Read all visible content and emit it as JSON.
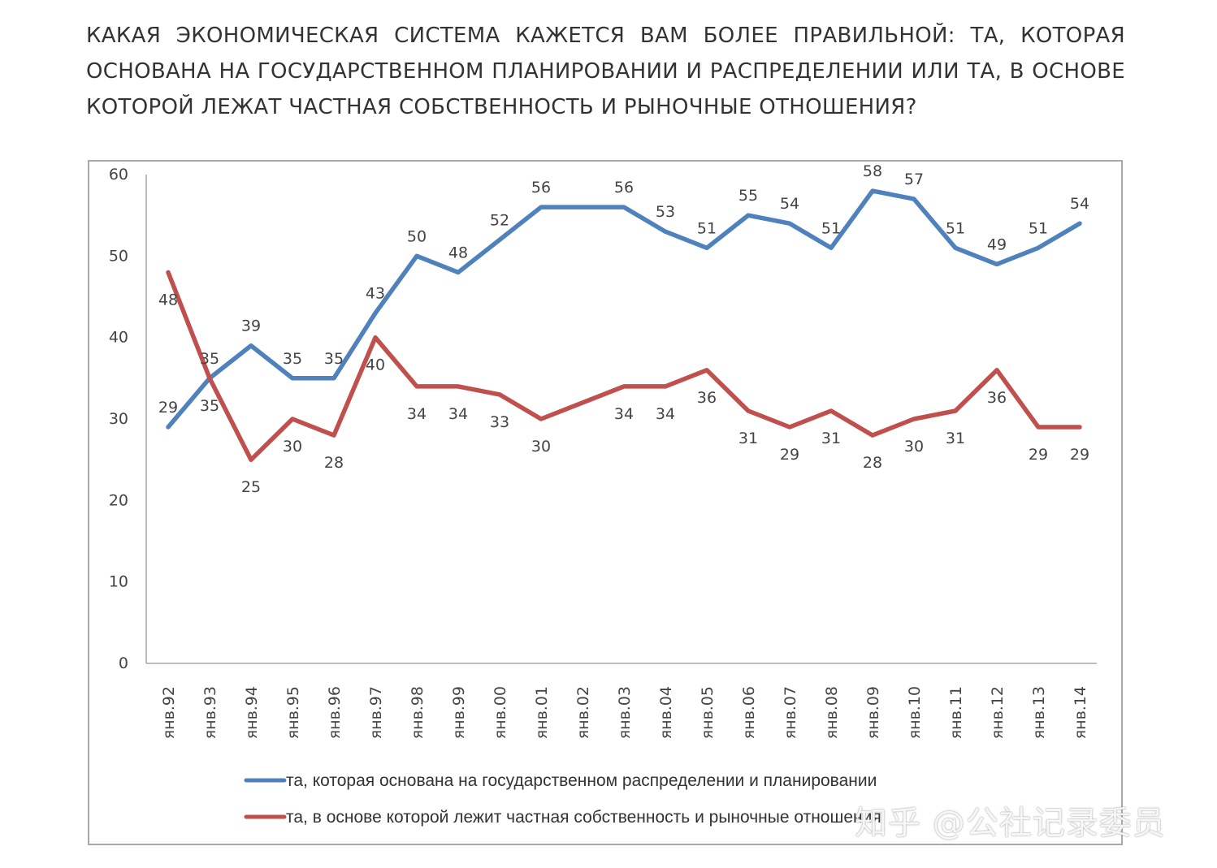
{
  "question": "КАКАЯ ЭКОНОМИЧЕСКАЯ СИСТЕМА КАЖЕТСЯ ВАМ БОЛЕЕ ПРАВИЛЬНОЙ: ТА, КОТОРАЯ ОСНОВАНА НА ГОСУДАРСТВЕННОМ ПЛАНИРОВАНИИ И РАСПРЕДЕЛЕНИИ ИЛИ ТА, В ОСНОВЕ КОТОРОЙ ЛЕЖАТ ЧАСТНАЯ СОБСТВЕННОСТЬ И РЫНОЧНЫЕ ОТНОШЕНИЯ?",
  "watermark": "知乎 @公社记录委员",
  "chart_data": {
    "type": "line",
    "title": "",
    "xlabel": "",
    "ylabel": "",
    "ylim": [
      0,
      60
    ],
    "yticks": [
      0,
      10,
      20,
      30,
      40,
      50,
      60
    ],
    "grid": false,
    "legend_position": "bottom",
    "categories": [
      "янв.92",
      "янв.93",
      "янв.94",
      "янв.95",
      "янв.96",
      "янв.97",
      "янв.98",
      "янв.99",
      "янв.00",
      "янв.01",
      "янв.02",
      "янв.03",
      "янв.04",
      "янв.05",
      "янв.06",
      "янв.07",
      "янв.08",
      "янв.09",
      "янв.10",
      "янв.11",
      "янв.12",
      "янв.13",
      "янв.14"
    ],
    "series": [
      {
        "name": "та, которая основана на государственном распределении и планировании",
        "color": "#4f81bd",
        "values": [
          29,
          35,
          39,
          35,
          35,
          43,
          50,
          48,
          52,
          56,
          56,
          56,
          53,
          51,
          55,
          54,
          51,
          58,
          57,
          51,
          49,
          51,
          54
        ],
        "labeled": [
          true,
          true,
          true,
          true,
          true,
          true,
          true,
          true,
          true,
          true,
          false,
          true,
          true,
          true,
          true,
          true,
          true,
          true,
          true,
          true,
          true,
          true,
          true
        ],
        "label_side": [
          "above",
          "above",
          "above",
          "above",
          "above",
          "above",
          "above",
          "above",
          "above",
          "above",
          "above",
          "above",
          "above",
          "above",
          "above",
          "above",
          "above",
          "above",
          "above",
          "above",
          "above",
          "above",
          "above"
        ]
      },
      {
        "name": "та, в основе которой лежит частная собственность и рыночные отношения",
        "color": "#c0504d",
        "values": [
          48,
          35,
          25,
          30,
          28,
          40,
          34,
          34,
          33,
          30,
          32,
          34,
          34,
          36,
          31,
          29,
          31,
          28,
          30,
          31,
          36,
          29,
          29
        ],
        "labeled": [
          true,
          true,
          true,
          true,
          true,
          true,
          true,
          true,
          true,
          true,
          false,
          true,
          true,
          true,
          true,
          true,
          true,
          true,
          true,
          true,
          true,
          true,
          true
        ],
        "label_side": [
          "below",
          "below",
          "below",
          "below",
          "below",
          "below",
          "below",
          "below",
          "below",
          "below",
          "below",
          "below",
          "below",
          "below",
          "below",
          "below",
          "below",
          "below",
          "below",
          "below",
          "below",
          "below",
          "below"
        ]
      }
    ]
  }
}
